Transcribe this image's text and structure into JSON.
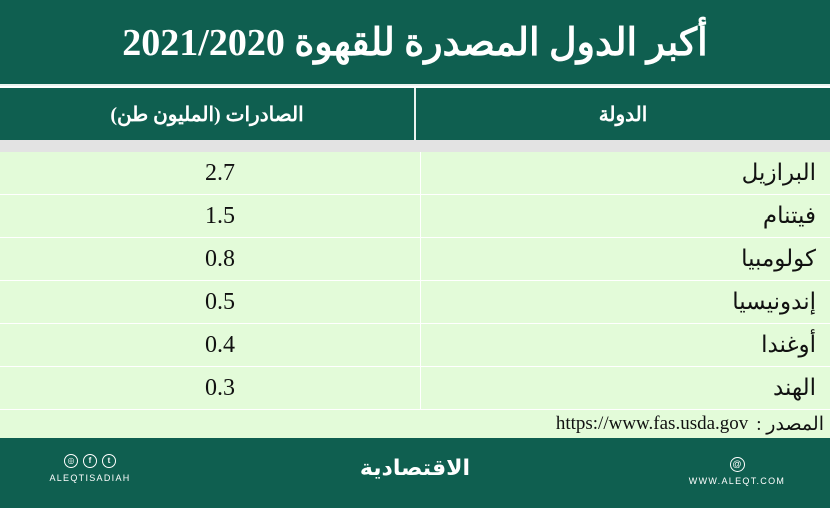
{
  "title": "أكبر الدول المصدرة للقهوة 2021/2020",
  "table": {
    "headers": {
      "country": "الدولة",
      "exports": "الصادرات (المليون طن)"
    },
    "rows": [
      {
        "country": "البرازيل",
        "value": "2.7"
      },
      {
        "country": "فيتنام",
        "value": "1.5"
      },
      {
        "country": "كولومبيا",
        "value": "0.8"
      },
      {
        "country": "إندونيسيا",
        "value": "0.5"
      },
      {
        "country": "أوغندا",
        "value": "0.4"
      },
      {
        "country": "الهند",
        "value": "0.3"
      }
    ]
  },
  "source": {
    "label": "المصدر :",
    "url": "https://www.fas.usda.gov"
  },
  "footer": {
    "brand": "الاقتصادية",
    "handle": "ALEQTISADIAH",
    "site": "WWW.ALEQT.COM",
    "social_icons": [
      "instagram-icon",
      "facebook-icon",
      "twitter-icon"
    ]
  },
  "colors": {
    "header_bg": "#0f5f50",
    "row_bg": "#e3fbd9"
  }
}
